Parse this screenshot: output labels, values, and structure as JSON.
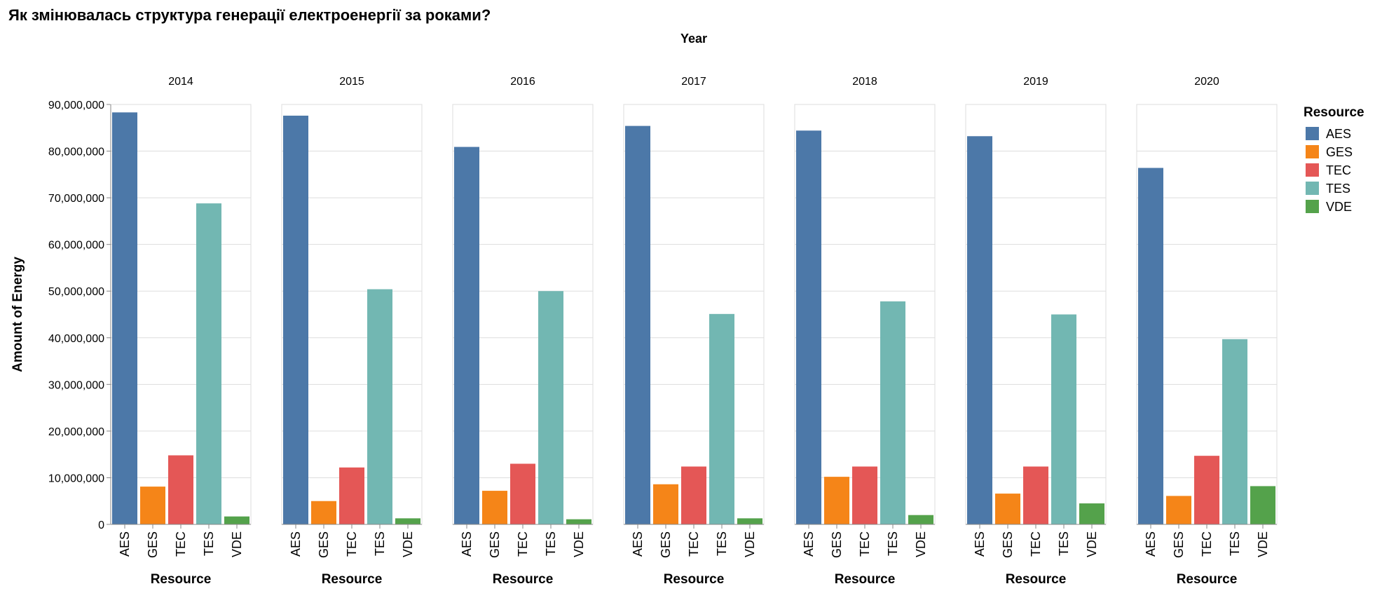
{
  "chart_data": {
    "type": "bar",
    "title": "Як змінювалась структура генерації електроенергії за роками?",
    "facet_label": "Year",
    "facets": [
      "2014",
      "2015",
      "2016",
      "2017",
      "2018",
      "2019",
      "2020"
    ],
    "categories": [
      "AES",
      "GES",
      "TEC",
      "TES",
      "VDE"
    ],
    "values": [
      [
        88300000,
        8100000,
        14800000,
        68800000,
        1700000
      ],
      [
        87600000,
        5000000,
        12200000,
        50400000,
        1300000
      ],
      [
        80900000,
        7200000,
        13000000,
        50000000,
        1100000
      ],
      [
        85400000,
        8600000,
        12400000,
        45100000,
        1300000
      ],
      [
        84400000,
        10200000,
        12400000,
        47800000,
        2000000
      ],
      [
        83200000,
        6600000,
        12400000,
        45000000,
        4500000
      ],
      [
        76400000,
        6100000,
        14700000,
        39700000,
        8200000
      ]
    ],
    "xlabel": "Resource",
    "ylabel": "Amount of Energy",
    "ylim": [
      0,
      90000000
    ],
    "yticks": [
      "0",
      "10,000,000",
      "20,000,000",
      "30,000,000",
      "40,000,000",
      "50,000,000",
      "60,000,000",
      "70,000,000",
      "80,000,000",
      "90,000,000"
    ],
    "grid": true,
    "legend": {
      "title": "Resource",
      "placement": "top-right",
      "items": [
        {
          "label": "AES",
          "color": "#4c78a8"
        },
        {
          "label": "GES",
          "color": "#f58518"
        },
        {
          "label": "TEC",
          "color": "#e45756"
        },
        {
          "label": "TES",
          "color": "#72b7b2"
        },
        {
          "label": "VDE",
          "color": "#54a24b"
        }
      ]
    }
  }
}
